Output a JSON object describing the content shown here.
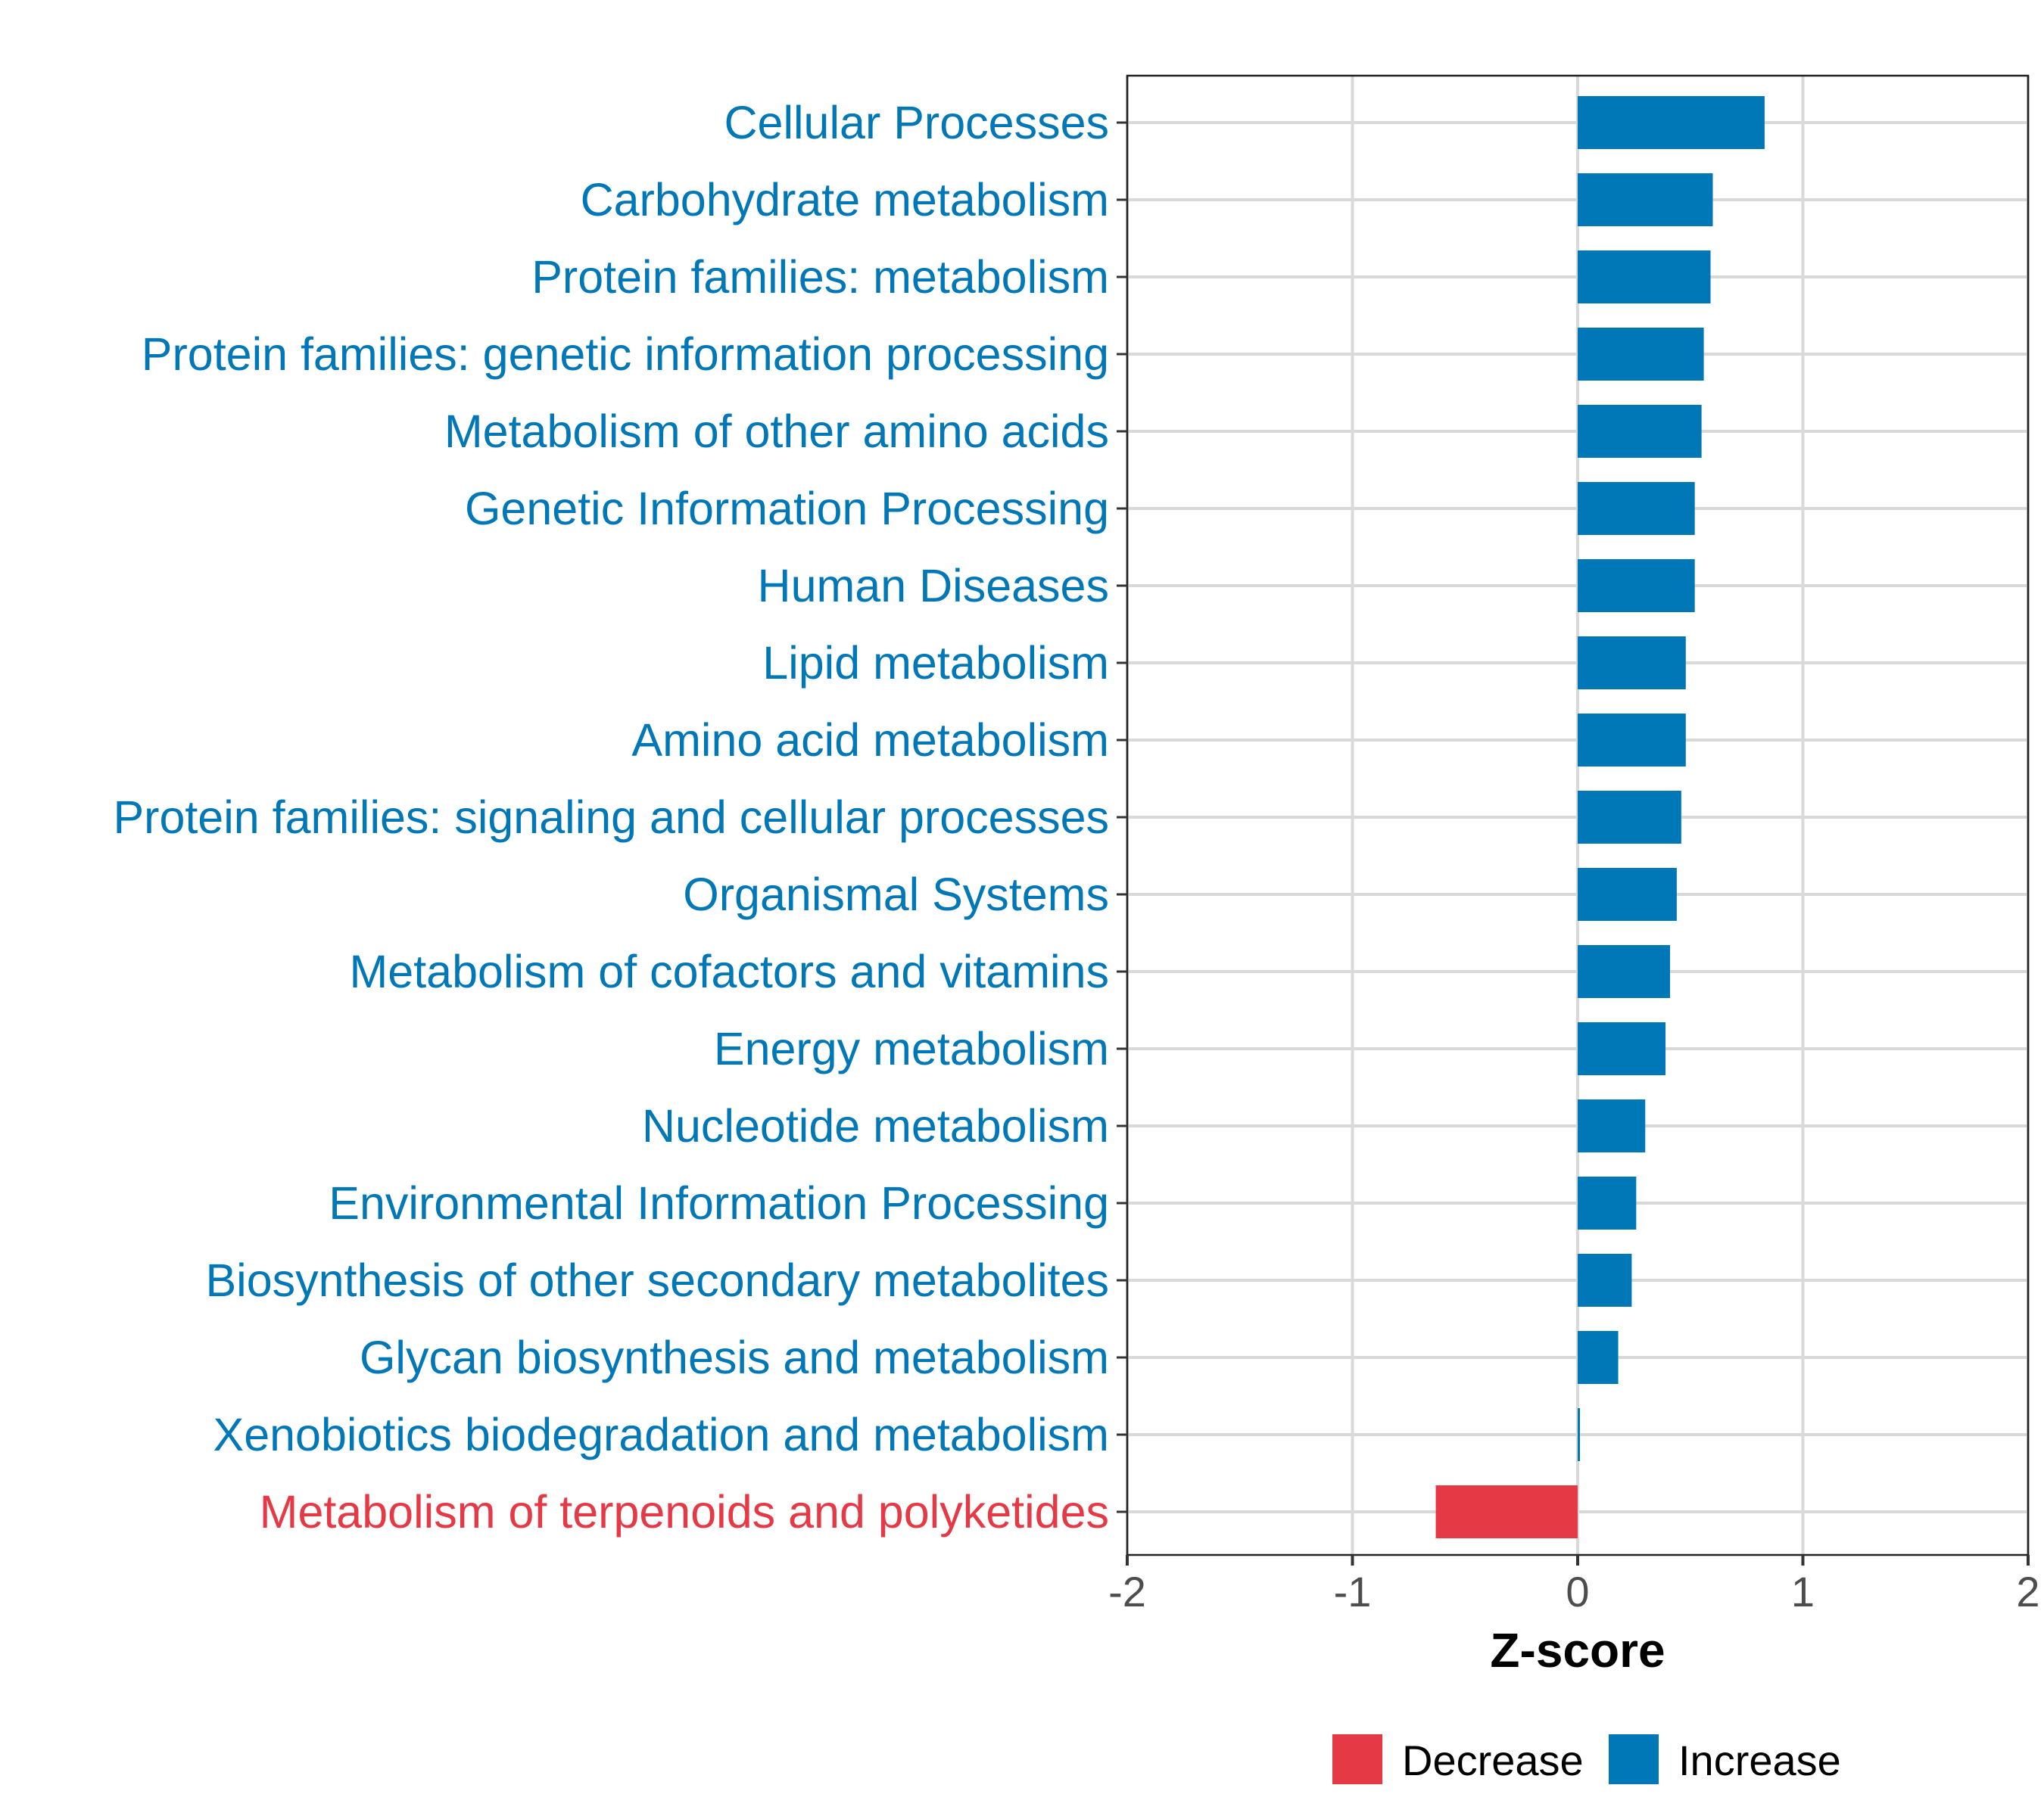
{
  "chart_data": {
    "type": "bar",
    "orientation": "horizontal",
    "title": "",
    "xlabel": "Z-score",
    "ylabel": "",
    "xlim": [
      -2,
      2
    ],
    "xticks": [
      -2,
      -1,
      0,
      1,
      2
    ],
    "xtick_labels": [
      "-2",
      "-1",
      "0",
      "1",
      "2"
    ],
    "grid": true,
    "legend_position": "bottom",
    "legend": [
      {
        "label": "Decrease",
        "color": "#E63946"
      },
      {
        "label": "Increase",
        "color": "#0077B6"
      }
    ],
    "categories": [
      "Cellular Processes",
      "Carbohydrate metabolism",
      "Protein families: metabolism",
      "Protein families: genetic information processing",
      "Metabolism of other amino acids",
      "Genetic Information Processing",
      "Human Diseases",
      "Lipid metabolism",
      "Amino acid metabolism",
      "Protein families: signaling and cellular processes",
      "Organismal Systems",
      "Metabolism of cofactors and vitamins",
      "Energy metabolism",
      "Nucleotide metabolism",
      "Environmental Information Processing",
      "Biosynthesis of other secondary metabolites",
      "Glycan biosynthesis and metabolism",
      "Xenobiotics biodegradation and metabolism",
      "Metabolism of terpenoids and polyketides"
    ],
    "values": [
      0.83,
      0.6,
      0.59,
      0.56,
      0.55,
      0.52,
      0.52,
      0.48,
      0.48,
      0.46,
      0.44,
      0.41,
      0.39,
      0.3,
      0.26,
      0.24,
      0.18,
      0.01,
      -0.63
    ]
  }
}
